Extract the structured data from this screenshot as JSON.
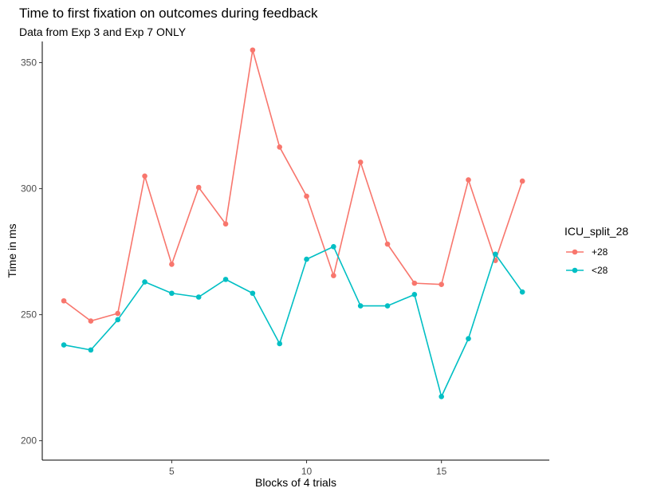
{
  "chart_data": {
    "type": "line",
    "title": "Time to first fixation on outcomes during feedback",
    "subtitle": "Data from Exp 3 and Exp 7 ONLY",
    "xlabel": "Blocks of 4 trials",
    "ylabel": "Time in ms",
    "xlim": [
      0.2,
      19.0
    ],
    "ylim": [
      192.3,
      358.4
    ],
    "x_ticks": [
      5,
      10,
      15
    ],
    "y_ticks": [
      200,
      250,
      300,
      350
    ],
    "grid": false,
    "legend": {
      "title": "ICU_split_28",
      "placement": "right"
    },
    "x": [
      1,
      2,
      3,
      4,
      5,
      6,
      7,
      8,
      9,
      10,
      11,
      12,
      13,
      14,
      15,
      16,
      17,
      18
    ],
    "series": [
      {
        "name": "+28",
        "color": "#F8766D",
        "values": [
          255.5,
          247.5,
          250.5,
          305,
          270,
          300.5,
          286,
          355,
          316.5,
          297,
          265.5,
          310.5,
          278,
          262.5,
          262,
          303.5,
          271.5,
          303
        ]
      },
      {
        "name": "<28",
        "color": "#00BFC4",
        "values": [
          238,
          236,
          248,
          263,
          258.5,
          257,
          264,
          258.5,
          238.5,
          272,
          277,
          253.5,
          253.5,
          258,
          217.5,
          240.5,
          274,
          259
        ]
      }
    ]
  }
}
